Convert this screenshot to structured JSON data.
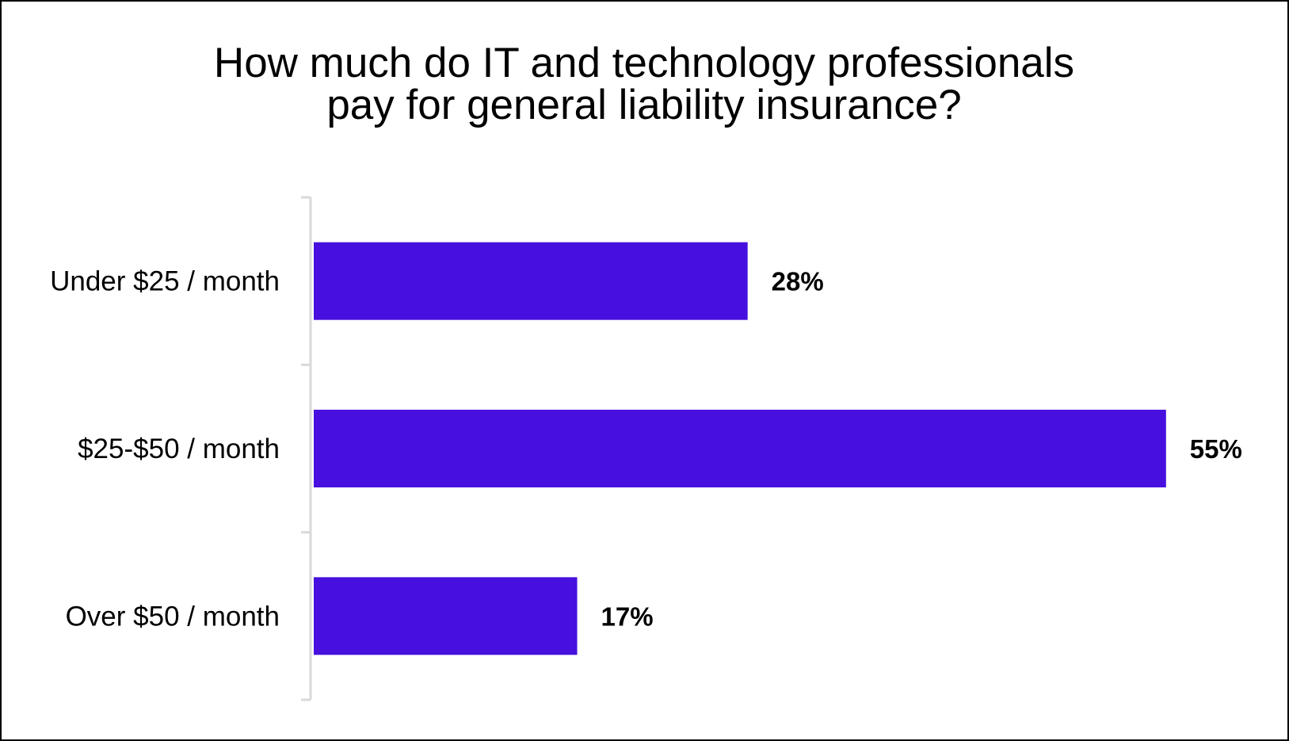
{
  "chart_data": {
    "type": "bar",
    "orientation": "horizontal",
    "title": [
      "How much do IT and technology professionals",
      "pay for general liability insurance?"
    ],
    "categories": [
      "Under $25 / month",
      "$25-$50 / month",
      "Over $50 / month"
    ],
    "values": [
      28,
      55,
      17
    ],
    "data_labels": [
      "28%",
      "55%",
      "17%"
    ],
    "xlabel": "",
    "ylabel": "",
    "xlim": [
      0,
      55
    ],
    "grid": false,
    "legend": "none",
    "bar_color": "#4710DE",
    "axis_color": "#D9D9D9"
  }
}
